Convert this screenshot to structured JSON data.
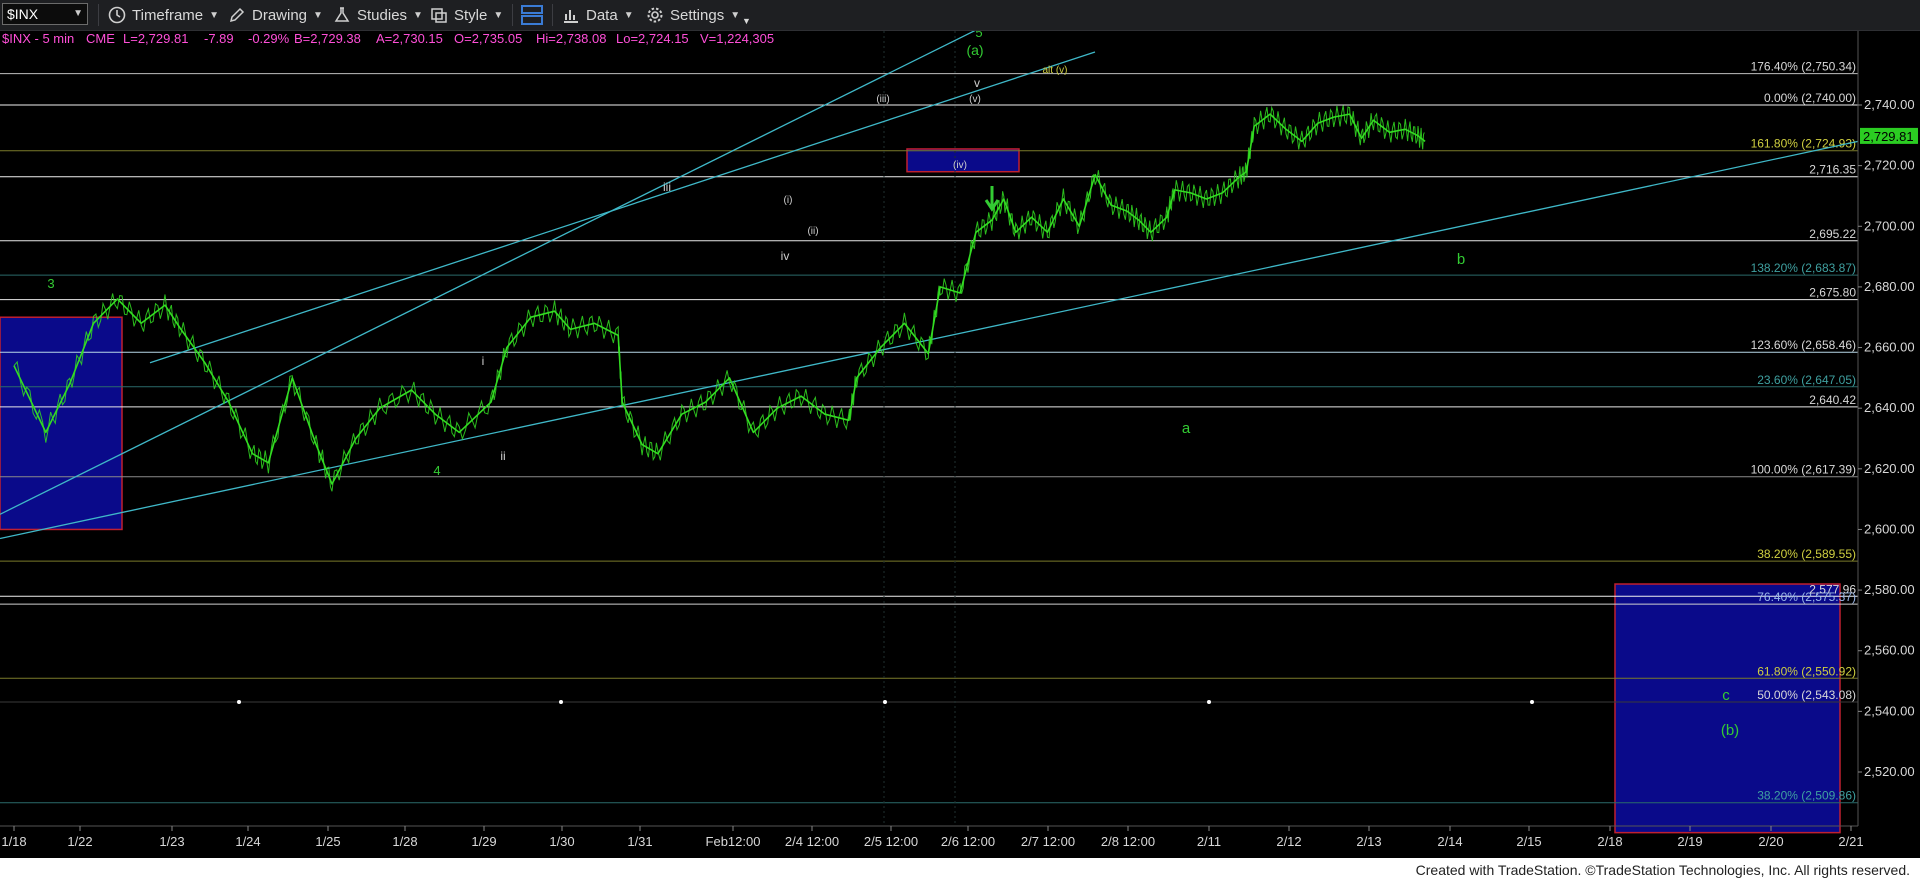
{
  "toolbar": {
    "symbol": "$INX",
    "timeframe": "Timeframe",
    "drawing": "Drawing",
    "studies": "Studies",
    "style": "Style",
    "data": "Data",
    "settings": "Settings"
  },
  "status_bar": {
    "symbol_interval": "$INX - 5 min",
    "exchange": "CME",
    "last": "L=2,729.81",
    "change": "-7.89",
    "change_pct": "-0.29%",
    "bid": "B=2,729.38",
    "ask": "A=2,730.15",
    "open": "O=2,735.05",
    "high": "Hi=2,738.08",
    "low": "Lo=2,724.15",
    "volume": "V=1,224,305"
  },
  "footer": "Created with TradeStation. ©TradeStation Technologies, Inc. All rights reserved.",
  "colors": {
    "price": "#33dd22",
    "fib": "#e0e0e0",
    "trend": "#3fb8c8",
    "box": "#0a0a8a",
    "label_green": "#33cc33",
    "label_white": "#cfcfcf"
  },
  "chart_data": {
    "type": "line",
    "title": "",
    "xlabel": "",
    "ylabel": "",
    "ylim": [
      2500,
      2760
    ],
    "x_ticks": [
      "1/18",
      "1/22",
      "1/23",
      "1/24",
      "1/25",
      "1/28",
      "1/29",
      "1/30",
      "1/31",
      "Feb12:00",
      "2/4 12:00",
      "2/5 12:00",
      "2/6 12:00",
      "2/7 12:00",
      "2/8 12:00",
      "2/11",
      "2/12",
      "2/13",
      "2/14",
      "2/15",
      "2/18",
      "2/19",
      "2/20",
      "2/21"
    ],
    "y_ticks": [
      "2,740.00",
      "2,720.00",
      "2,700.00",
      "2,680.00",
      "2,660.00",
      "2,640.00",
      "2,620.00",
      "2,600.00",
      "2,580.00",
      "2,560.00",
      "2,540.00",
      "2,520.00"
    ],
    "last_price_label": "2,729.81",
    "series": [
      {
        "values": [
          [
            0.0,
            2654
          ],
          [
            0.4,
            2632
          ],
          [
            0.7,
            2648
          ],
          [
            1.0,
            2668
          ],
          [
            1.3,
            2676
          ],
          [
            1.6,
            2668
          ],
          [
            1.9,
            2674
          ],
          [
            2.1,
            2666
          ],
          [
            2.4,
            2655
          ],
          [
            2.7,
            2642
          ],
          [
            3.0,
            2625
          ],
          [
            3.2,
            2622
          ],
          [
            3.5,
            2650
          ],
          [
            3.8,
            2628
          ],
          [
            4.0,
            2615
          ],
          [
            4.3,
            2630
          ],
          [
            4.6,
            2640
          ],
          [
            5.0,
            2646
          ],
          [
            5.3,
            2638
          ],
          [
            5.6,
            2632
          ],
          [
            6.0,
            2642
          ],
          [
            6.2,
            2660
          ],
          [
            6.5,
            2670
          ],
          [
            6.8,
            2672
          ],
          [
            7.0,
            2666
          ],
          [
            7.3,
            2668
          ],
          [
            7.6,
            2664
          ],
          [
            7.65,
            2642
          ],
          [
            7.9,
            2628
          ],
          [
            8.1,
            2625
          ],
          [
            8.4,
            2638
          ],
          [
            8.7,
            2642
          ],
          [
            9.0,
            2650
          ],
          [
            9.3,
            2632
          ],
          [
            9.6,
            2640
          ],
          [
            9.9,
            2644
          ],
          [
            10.2,
            2638
          ],
          [
            10.5,
            2636
          ],
          [
            10.6,
            2650
          ],
          [
            10.9,
            2660
          ],
          [
            11.2,
            2668
          ],
          [
            11.5,
            2658
          ],
          [
            11.65,
            2680
          ],
          [
            11.9,
            2678
          ],
          [
            12.1,
            2698
          ],
          [
            12.3,
            2702
          ],
          [
            12.45,
            2709
          ],
          [
            12.6,
            2698
          ],
          [
            12.8,
            2703
          ],
          [
            13.0,
            2698
          ],
          [
            13.2,
            2709
          ],
          [
            13.4,
            2700
          ],
          [
            13.6,
            2717
          ],
          [
            13.8,
            2707
          ],
          [
            14.0,
            2705
          ],
          [
            14.15,
            2702
          ],
          [
            14.3,
            2698
          ],
          [
            14.5,
            2703
          ],
          [
            14.6,
            2712
          ],
          [
            14.8,
            2711
          ],
          [
            15.0,
            2709
          ],
          [
            15.2,
            2711
          ],
          [
            15.4,
            2716
          ],
          [
            15.5,
            2718
          ],
          [
            15.6,
            2733
          ],
          [
            15.8,
            2737
          ],
          [
            16.0,
            2732
          ],
          [
            16.2,
            2728
          ],
          [
            16.4,
            2734
          ],
          [
            16.6,
            2736
          ],
          [
            16.8,
            2737
          ],
          [
            16.95,
            2729
          ],
          [
            17.1,
            2735
          ],
          [
            17.3,
            2731
          ],
          [
            17.5,
            2732
          ],
          [
            17.65,
            2730
          ],
          [
            17.75,
            2728
          ]
        ]
      }
    ],
    "fib_levels": [
      {
        "label": "176.40% (2,750.34)",
        "value": 2750.34
      },
      {
        "label": "0.00% (2,740.00)",
        "value": 2740.0
      },
      {
        "label": "161.80% (2,724.93)",
        "value": 2724.93
      },
      {
        "label": "2,716.35",
        "value": 2716.35
      },
      {
        "label": "2,695.22",
        "value": 2695.22
      },
      {
        "label": "138.20% (2,683.87)",
        "value": 2683.87
      },
      {
        "label": "2,675.80",
        "value": 2675.8
      },
      {
        "label": "123.60% (2,658.46)",
        "value": 2658.46
      },
      {
        "label": "23.60% (2,647.05)",
        "value": 2647.05
      },
      {
        "label": "2,640.42",
        "value": 2640.42
      },
      {
        "label": "100.00% (2,617.39)",
        "value": 2617.39
      },
      {
        "label": "38.20% (2,589.55)",
        "value": 2589.55
      },
      {
        "label": "2,577.96",
        "value": 2577.96
      },
      {
        "label": "76.40% (2,575.37)",
        "value": 2575.37
      },
      {
        "label": "61.80% (2,550.92)",
        "value": 2550.92
      },
      {
        "label": "50.00% (2,543.08)",
        "value": 2543.08
      },
      {
        "label": "38.20% (2,509.86)",
        "value": 2509.86
      }
    ],
    "wave_labels": [
      "3",
      "4",
      "i",
      "ii",
      "iii",
      "iv",
      "(i)",
      "(ii)",
      "(iii)",
      "(iv)",
      "(v)",
      "v",
      "5",
      "(a)",
      "alt (v)",
      "a",
      "b",
      "c",
      "(b)"
    ]
  }
}
